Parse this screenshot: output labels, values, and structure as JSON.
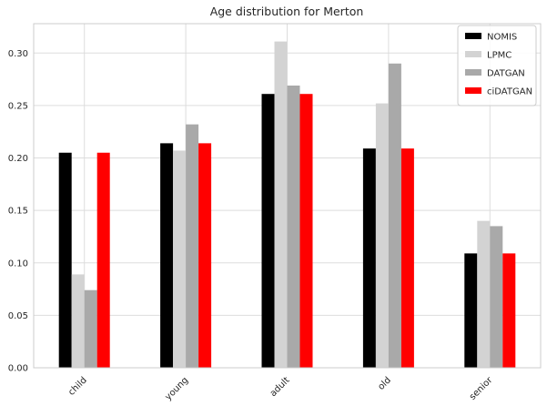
{
  "chart_data": {
    "type": "bar",
    "title": "Age distribution for Merton",
    "xlabel": "",
    "ylabel": "",
    "categories": [
      "child",
      "young",
      "adult",
      "old",
      "senior"
    ],
    "series": [
      {
        "name": "NOMIS",
        "color": "#000000",
        "values": [
          0.205,
          0.214,
          0.261,
          0.209,
          0.109
        ]
      },
      {
        "name": "LPMC",
        "color": "#d3d3d3",
        "values": [
          0.089,
          0.207,
          0.311,
          0.252,
          0.14
        ]
      },
      {
        "name": "DATGAN",
        "color": "#a9a9a9",
        "values": [
          0.074,
          0.232,
          0.269,
          0.29,
          0.135
        ]
      },
      {
        "name": "ciDATGAN",
        "color": "#ff0000",
        "values": [
          0.205,
          0.214,
          0.261,
          0.209,
          0.109
        ]
      }
    ],
    "ylim": [
      0,
      0.328
    ],
    "yticks": [
      "0.00",
      "0.05",
      "0.10",
      "0.15",
      "0.20",
      "0.25",
      "0.30"
    ],
    "grid": true,
    "legend_position": "top-right"
  }
}
